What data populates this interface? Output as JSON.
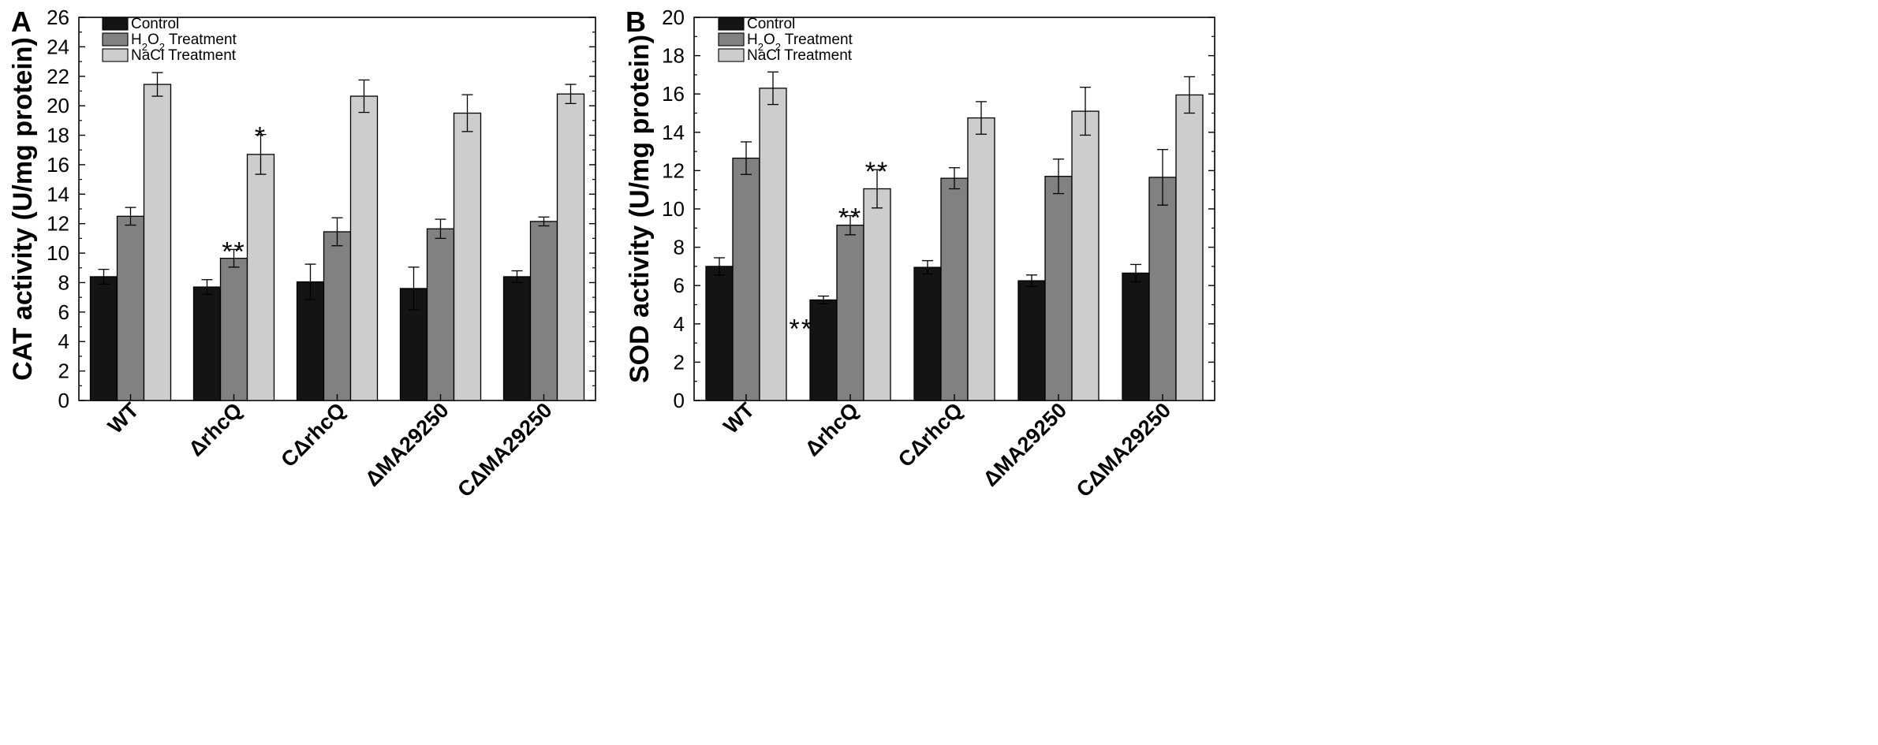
{
  "colors": {
    "Control": "#141414",
    "H2O2 Treatment": "#818181",
    "NaCl Treatment": "#cdcdcd",
    "axis": "#000000"
  },
  "chart_data": [
    {
      "panel_label": "A",
      "type": "bar",
      "ylabel": "CAT activity (U/mg protein)",
      "xlabel": "",
      "ylim": [
        0,
        26
      ],
      "ytick_step": 2,
      "yticks": [
        "0",
        "2",
        "4",
        "6",
        "8",
        "10",
        "12",
        "14",
        "16",
        "18",
        "20",
        "22",
        "24",
        "26"
      ],
      "categories": [
        "WT",
        "ΔrhcQ",
        "CΔrhcQ",
        "ΔMA29250",
        "CΔMA29250"
      ],
      "legend": {
        "position": "top-left",
        "entries": [
          {
            "key": "Control",
            "label": "Control"
          },
          {
            "key": "H2O2 Treatment",
            "label_pre": "H",
            "label_sub1": "2",
            "label_mid": "O",
            "label_sub2": "2",
            "label_post": " Treatment"
          },
          {
            "key": "NaCl Treatment",
            "label": "NaCl Treatment"
          }
        ]
      },
      "series": [
        {
          "name": "Control",
          "values": [
            8.4,
            7.7,
            8.05,
            7.6,
            8.4
          ],
          "errors": [
            0.5,
            0.5,
            1.2,
            1.45,
            0.4
          ]
        },
        {
          "name": "H2O2 Treatment",
          "values": [
            12.5,
            9.65,
            11.45,
            11.65,
            12.15
          ],
          "errors": [
            0.6,
            0.6,
            0.95,
            0.65,
            0.3
          ]
        },
        {
          "name": "NaCl Treatment",
          "values": [
            21.45,
            16.7,
            20.65,
            19.5,
            20.8
          ],
          "errors": [
            0.8,
            1.35,
            1.1,
            1.25,
            0.65
          ]
        }
      ],
      "annotations": [
        {
          "text": "**",
          "category_index": 1,
          "series_index": 1,
          "placement": "above"
        },
        {
          "text": "*",
          "category_index": 1,
          "series_index": 2,
          "placement": "above"
        }
      ]
    },
    {
      "panel_label": "B",
      "type": "bar",
      "ylabel": "SOD activity (U/mg protein)",
      "xlabel": "",
      "ylim": [
        0,
        20
      ],
      "ytick_step": 2,
      "yticks": [
        "0",
        "2",
        "4",
        "6",
        "8",
        "10",
        "12",
        "14",
        "16",
        "18",
        "20"
      ],
      "categories": [
        "WT",
        "ΔrhcQ",
        "CΔrhcQ",
        "ΔMA29250",
        "CΔMA29250"
      ],
      "legend": {
        "position": "top-left",
        "entries": [
          {
            "key": "Control",
            "label": "Control"
          },
          {
            "key": "H2O2 Treatment",
            "label_pre": "H",
            "label_sub1": "2",
            "label_mid": "O",
            "label_sub2": "2",
            "label_post": " Treatment"
          },
          {
            "key": "NaCl Treatment",
            "label": "NaCl Treatment"
          }
        ]
      },
      "series": [
        {
          "name": "Control",
          "values": [
            7.0,
            5.25,
            6.95,
            6.25,
            6.65
          ],
          "errors": [
            0.45,
            0.2,
            0.35,
            0.3,
            0.45
          ]
        },
        {
          "name": "H2O2 Treatment",
          "values": [
            12.65,
            9.15,
            11.6,
            11.7,
            11.65
          ],
          "errors": [
            0.85,
            0.5,
            0.55,
            0.9,
            1.45
          ]
        },
        {
          "name": "NaCl Treatment",
          "values": [
            16.3,
            11.05,
            14.75,
            15.1,
            15.95
          ],
          "errors": [
            0.85,
            1.0,
            0.85,
            1.25,
            0.95
          ]
        }
      ],
      "annotations": [
        {
          "text": "**",
          "category_index": 1,
          "series_index": 0,
          "placement": "inside-left"
        },
        {
          "text": "**",
          "category_index": 1,
          "series_index": 1,
          "placement": "above"
        },
        {
          "text": "**",
          "category_index": 1,
          "series_index": 2,
          "placement": "above"
        }
      ]
    }
  ]
}
